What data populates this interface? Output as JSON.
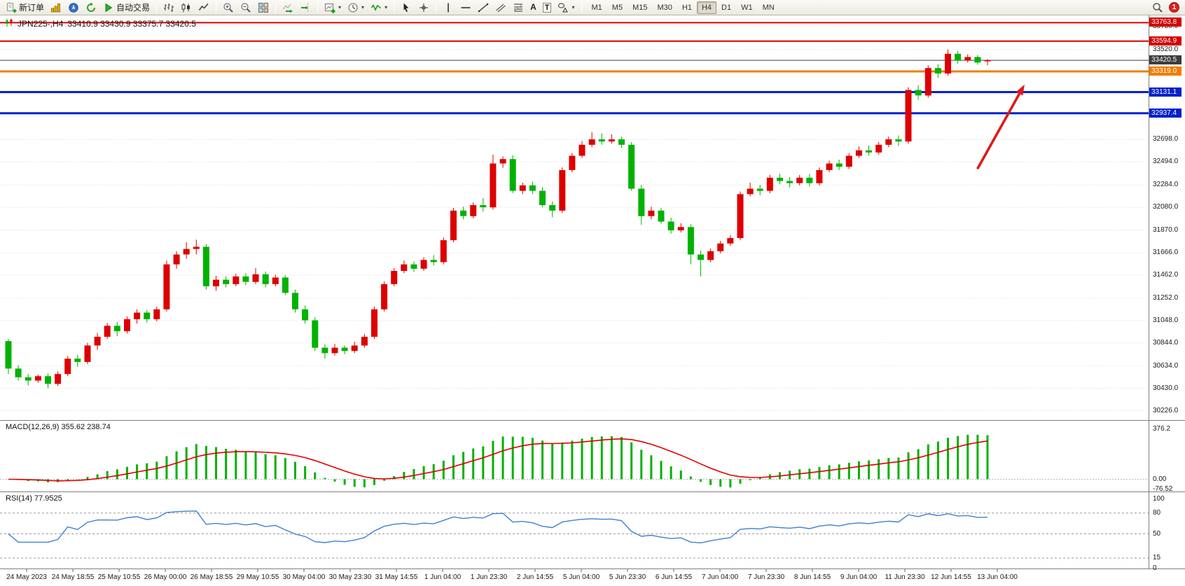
{
  "toolbar": {
    "new_order_label": "新订单",
    "autotrading_label": "自动交易",
    "text_tool": "A",
    "label_tool": "T",
    "caret": "▾",
    "timeframes": [
      "M1",
      "M5",
      "M15",
      "M30",
      "H1",
      "H4",
      "D1",
      "W1",
      "MN"
    ],
    "active_timeframe": "H4",
    "notification_count": "1"
  },
  "chart": {
    "symbol_period": "JPN225-,H4",
    "ohlc": "33410.9 33430.9 33375.7 33420.5"
  },
  "macd": {
    "label": "MACD(12,26,9) 355.62 238.74",
    "axis": [
      {
        "v": 376.2,
        "t": "376.2"
      },
      {
        "v": 0,
        "t": "0.00"
      },
      {
        "v": -76.52,
        "t": "-76.52"
      }
    ]
  },
  "rsi": {
    "label": "RSI(14) 77.9525",
    "axis": [
      {
        "v": 100,
        "t": "100"
      },
      {
        "v": 80,
        "t": "80"
      },
      {
        "v": 50,
        "t": "50"
      },
      {
        "v": 15,
        "t": "15"
      },
      {
        "v": 0,
        "t": "0"
      }
    ]
  },
  "chart_data": {
    "type": "candlestick",
    "symbol": "JPN225-",
    "timeframe": "H4",
    "current_ohlc": {
      "open": 33410.9,
      "high": 33430.9,
      "low": 33375.7,
      "close": 33420.5
    },
    "ylim": [
      30140,
      33830
    ],
    "price_ticks": [
      33730.0,
      33520.0,
      32698.0,
      32494.0,
      32284.0,
      32080.0,
      31870.0,
      31666.0,
      31462.0,
      31252.0,
      31048.0,
      30844.0,
      30634.0,
      30430.0,
      30226.0
    ],
    "grid_extra": [
      33316.0,
      33112.0,
      32906.0
    ],
    "colors": {
      "bull": "#dd0000",
      "bear": "#00b200",
      "macd_hist": "#00b200",
      "macd_signal": "#e00000",
      "rsi_line": "#3b82d0",
      "price_line": "#3c3c3c",
      "arrow": "#e01818"
    },
    "hlines": [
      {
        "price": 33763.8,
        "label": "33763.8",
        "color": "#d40000",
        "width": 2
      },
      {
        "price": 33594.9,
        "label": "33594.9",
        "color": "#d40000",
        "width": 2
      },
      {
        "price": 33420.5,
        "label": "33420.5",
        "color": "#3c3c3c",
        "width": 1
      },
      {
        "price": 33319.0,
        "label": "33319.0",
        "color": "#f07d00",
        "width": 3
      },
      {
        "price": 33131.1,
        "label": "33131.1",
        "color": "#0020cc",
        "width": 3
      },
      {
        "price": 32937.4,
        "label": "32937.4",
        "color": "#0020cc",
        "width": 3
      }
    ],
    "macd": {
      "params": "12,26,9",
      "current_hist": 355.62,
      "current_signal": 238.74,
      "ymax": 376.2,
      "ymin": -76.52
    },
    "rsi": {
      "period": 14,
      "current": 77.9525,
      "levels": [
        80,
        50,
        15
      ]
    },
    "candles": [
      [
        30860,
        30880,
        30560,
        30610
      ],
      [
        30610,
        30640,
        30500,
        30530
      ],
      [
        30530,
        30560,
        30455,
        30500
      ],
      [
        30500,
        30555,
        30480,
        30540
      ],
      [
        30540,
        30565,
        30430,
        30470
      ],
      [
        30470,
        30585,
        30450,
        30560
      ],
      [
        30560,
        30725,
        30540,
        30700
      ],
      [
        30700,
        30735,
        30625,
        30670
      ],
      [
        30670,
        30845,
        30650,
        30820
      ],
      [
        30820,
        30935,
        30780,
        30900
      ],
      [
        30900,
        31025,
        30880,
        31000
      ],
      [
        31000,
        31035,
        30905,
        30950
      ],
      [
        30950,
        31085,
        30930,
        31060
      ],
      [
        31060,
        31150,
        31020,
        31120
      ],
      [
        31120,
        31145,
        31030,
        31060
      ],
      [
        31060,
        31175,
        31040,
        31150
      ],
      [
        31150,
        31595,
        31130,
        31560
      ],
      [
        31560,
        31680,
        31520,
        31650
      ],
      [
        31650,
        31760,
        31610,
        31700
      ],
      [
        31700,
        31785,
        31650,
        31720
      ],
      [
        31720,
        31745,
        31330,
        31360
      ],
      [
        31360,
        31455,
        31320,
        31420
      ],
      [
        31420,
        31450,
        31350,
        31380
      ],
      [
        31380,
        31475,
        31360,
        31450
      ],
      [
        31450,
        31480,
        31370,
        31400
      ],
      [
        31400,
        31525,
        31380,
        31470
      ],
      [
        31470,
        31495,
        31350,
        31380
      ],
      [
        31380,
        31465,
        31360,
        31440
      ],
      [
        31440,
        31460,
        31280,
        31300
      ],
      [
        31300,
        31330,
        31120,
        31150
      ],
      [
        31150,
        31185,
        31020,
        31050
      ],
      [
        31050,
        31080,
        30770,
        30800
      ],
      [
        30800,
        30830,
        30700,
        30750
      ],
      [
        30750,
        30835,
        30730,
        30800
      ],
      [
        30800,
        30820,
        30740,
        30770
      ],
      [
        30770,
        30855,
        30750,
        30820
      ],
      [
        30820,
        30925,
        30800,
        30900
      ],
      [
        30900,
        31175,
        30880,
        31150
      ],
      [
        31150,
        31405,
        31130,
        31380
      ],
      [
        31380,
        31525,
        31360,
        31500
      ],
      [
        31500,
        31595,
        31480,
        31560
      ],
      [
        31560,
        31585,
        31490,
        31520
      ],
      [
        31520,
        31625,
        31500,
        31600
      ],
      [
        31600,
        31645,
        31550,
        31580
      ],
      [
        31580,
        31805,
        31560,
        31780
      ],
      [
        31780,
        32075,
        31760,
        32050
      ],
      [
        32050,
        32085,
        31970,
        32000
      ],
      [
        32000,
        32125,
        31980,
        32100
      ],
      [
        32100,
        32165,
        32040,
        32080
      ],
      [
        32080,
        32560,
        32060,
        32480
      ],
      [
        32480,
        32545,
        32440,
        32520
      ],
      [
        32520,
        32555,
        32210,
        32230
      ],
      [
        32230,
        32305,
        32200,
        32280
      ],
      [
        32280,
        32315,
        32200,
        32230
      ],
      [
        32230,
        32265,
        32080,
        32100
      ],
      [
        32100,
        32135,
        31990,
        32050
      ],
      [
        32050,
        32445,
        32030,
        32420
      ],
      [
        32420,
        32575,
        32400,
        32550
      ],
      [
        32550,
        32685,
        32530,
        32650
      ],
      [
        32650,
        32765,
        32630,
        32700
      ],
      [
        32700,
        32755,
        32650,
        32680
      ],
      [
        32680,
        32745,
        32660,
        32700
      ],
      [
        32700,
        32725,
        32620,
        32650
      ],
      [
        32650,
        32675,
        32230,
        32250
      ],
      [
        32250,
        32285,
        31920,
        32000
      ],
      [
        32000,
        32085,
        31970,
        32050
      ],
      [
        32050,
        32075,
        31930,
        31950
      ],
      [
        31950,
        31985,
        31840,
        31870
      ],
      [
        31870,
        31935,
        31850,
        31900
      ],
      [
        31900,
        31925,
        31560,
        31650
      ],
      [
        31650,
        31685,
        31450,
        31600
      ],
      [
        31600,
        31705,
        31580,
        31680
      ],
      [
        31680,
        31775,
        31660,
        31750
      ],
      [
        31750,
        31825,
        31730,
        31800
      ],
      [
        31800,
        32225,
        31780,
        32200
      ],
      [
        32200,
        32305,
        32180,
        32250
      ],
      [
        32250,
        32285,
        32190,
        32230
      ],
      [
        32230,
        32375,
        32210,
        32350
      ],
      [
        32350,
        32385,
        32290,
        32320
      ],
      [
        32320,
        32355,
        32260,
        32300
      ],
      [
        32300,
        32375,
        32280,
        32350
      ],
      [
        32350,
        32385,
        32270,
        32300
      ],
      [
        32300,
        32445,
        32280,
        32420
      ],
      [
        32420,
        32505,
        32400,
        32480
      ],
      [
        32480,
        32515,
        32420,
        32450
      ],
      [
        32450,
        32575,
        32430,
        32550
      ],
      [
        32550,
        32635,
        32530,
        32600
      ],
      [
        32600,
        32645,
        32550,
        32580
      ],
      [
        32580,
        32675,
        32560,
        32650
      ],
      [
        32650,
        32725,
        32630,
        32700
      ],
      [
        32700,
        32735,
        32640,
        32680
      ],
      [
        32680,
        33175,
        32660,
        33150
      ],
      [
        33150,
        33195,
        33060,
        33100
      ],
      [
        33100,
        33375,
        33080,
        33350
      ],
      [
        33350,
        33385,
        33260,
        33300
      ],
      [
        33300,
        33520,
        33280,
        33480
      ],
      [
        33480,
        33505,
        33390,
        33420
      ],
      [
        33420,
        33475,
        33400,
        33450
      ],
      [
        33450,
        33468,
        33380,
        33400
      ],
      [
        33410.9,
        33430.9,
        33375.7,
        33420.5
      ]
    ],
    "time_labels": [
      "24 May 2023",
      "24 May 18:55",
      "25 May 10:55",
      "26 May 00:00",
      "26 May 18:55",
      "29 May 10:55",
      "30 May 04:00",
      "30 May 23:30",
      "31 May 14:55",
      "1 Jun 04:00",
      "1 Jun 23:30",
      "2 Jun 14:55",
      "5 Jun 04:00",
      "5 Jun 23:30",
      "6 Jun 14:55",
      "7 Jun 04:00",
      "7 Jun 23:30",
      "8 Jun 14:55",
      "9 Jun 04:00",
      "11 Jun 23:30",
      "12 Jun 14:55",
      "13 Jun 04:00"
    ],
    "annotations": {
      "arrow": {
        "color": "#e01818",
        "tail": {
          "x_frac": 0.851,
          "price": 32430
        },
        "head": {
          "x_frac": 0.892,
          "price": 33200
        }
      }
    }
  }
}
